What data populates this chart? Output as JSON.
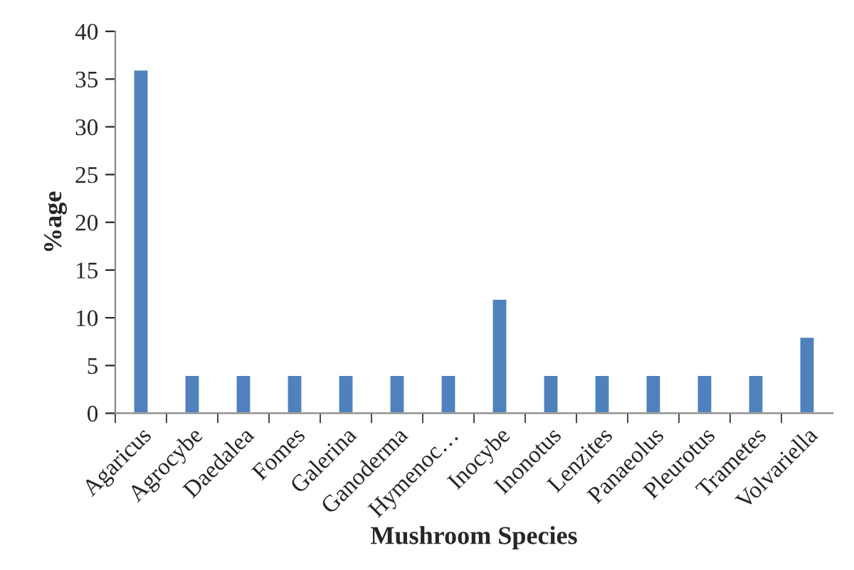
{
  "chart_data": {
    "type": "bar",
    "xlabel": "Mushroom Species",
    "ylabel": "%age",
    "categories": [
      "Agaricus",
      "Agrocybe",
      "Daedalea",
      "Fomes",
      "Galerina",
      "Ganoderma",
      "Hymenoc…",
      "Inocybe",
      "Inonotus",
      "Lenzites",
      "Panaeolus",
      "Pleurotus",
      "Trametes",
      "Volvariella"
    ],
    "values": [
      36,
      4,
      4,
      4,
      4,
      4,
      4,
      12,
      4,
      4,
      4,
      4,
      4,
      8
    ],
    "color": "#4f81bd",
    "ylim": [
      0,
      40
    ],
    "yticks": [
      0,
      5,
      10,
      15,
      20,
      25,
      30,
      35,
      40
    ],
    "grid": false,
    "legend": false
  }
}
